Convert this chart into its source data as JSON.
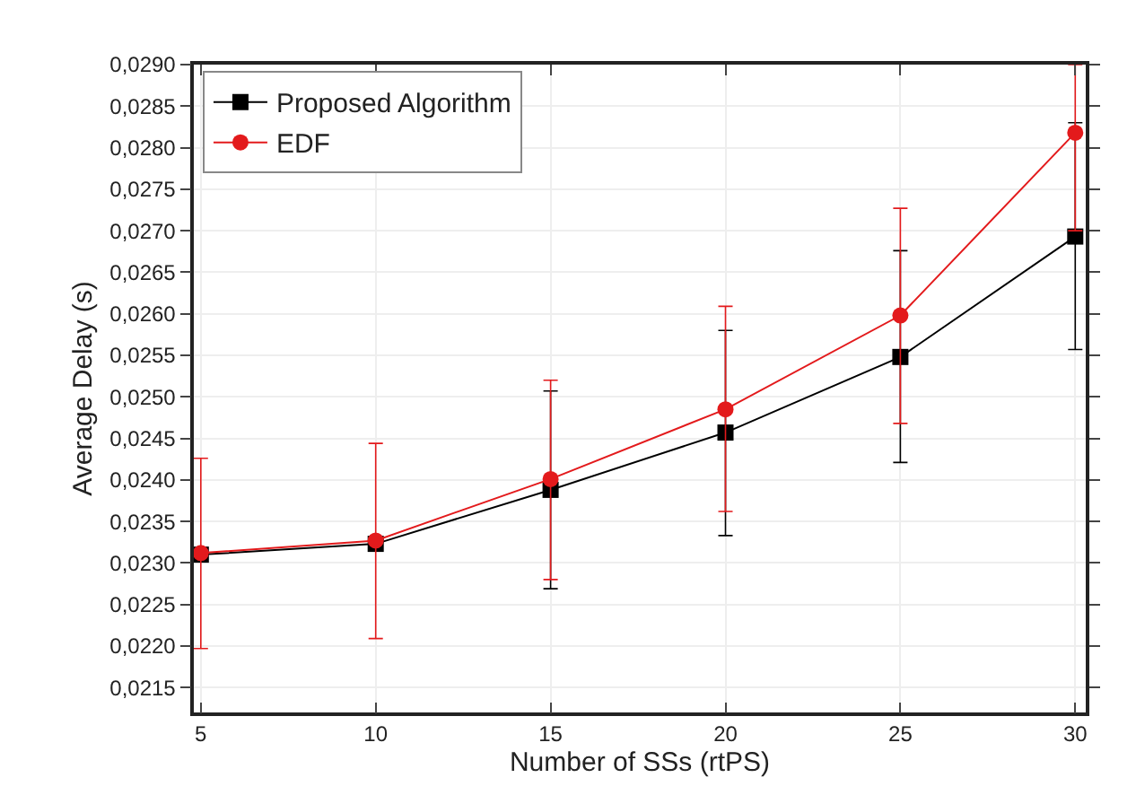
{
  "chart_data": {
    "type": "line",
    "xlabel": "Number of SSs (rtPS)",
    "ylabel": "Average Delay (s)",
    "x": [
      5,
      10,
      15,
      20,
      25,
      30
    ],
    "series": [
      {
        "name": "Proposed Algorithm",
        "color": "#000000",
        "marker": "square",
        "values": [
          0.0231,
          0.02323,
          0.02388,
          0.02457,
          0.02548,
          0.02693
        ],
        "errors": [
          null,
          null,
          [
            0.02269,
            0.02507
          ],
          [
            0.02333,
            0.0258
          ],
          [
            0.02421,
            0.02676
          ],
          [
            0.02557,
            0.0283
          ]
        ]
      },
      {
        "name": "EDF",
        "color": "#e31a1c",
        "marker": "circle",
        "values": [
          0.02312,
          0.02327,
          0.02401,
          0.02485,
          0.02598,
          0.02818
        ],
        "errors": [
          [
            0.02197,
            0.02426
          ],
          [
            0.02209,
            0.02444
          ],
          [
            0.0228,
            0.0252
          ],
          [
            0.02362,
            0.02609
          ],
          [
            0.02468,
            0.02727
          ],
          [
            0.027,
            0.029
          ]
        ]
      }
    ],
    "xlim": [
      4.8,
      30.3
    ],
    "xticks": [
      5,
      10,
      15,
      20,
      25,
      30
    ],
    "ylim": [
      0.0212,
      0.029
    ],
    "yticks": [
      {
        "value": 0.0215,
        "label": "0,0215"
      },
      {
        "value": 0.022,
        "label": "0,0220"
      },
      {
        "value": 0.0225,
        "label": "0,0225"
      },
      {
        "value": 0.023,
        "label": "0,0230"
      },
      {
        "value": 0.0235,
        "label": "0,0235"
      },
      {
        "value": 0.024,
        "label": "0,0240"
      },
      {
        "value": 0.0245,
        "label": "0,0245"
      },
      {
        "value": 0.025,
        "label": "0,0250"
      },
      {
        "value": 0.0255,
        "label": "0,0255"
      },
      {
        "value": 0.026,
        "label": "0,0260"
      },
      {
        "value": 0.0265,
        "label": "0,0265"
      },
      {
        "value": 0.027,
        "label": "0,0270"
      },
      {
        "value": 0.0275,
        "label": "0,0275"
      },
      {
        "value": 0.028,
        "label": "0,0280"
      },
      {
        "value": 0.0285,
        "label": "0,0285"
      },
      {
        "value": 0.029,
        "label": "0,0290"
      }
    ],
    "grid": true,
    "legend": "top left",
    "line_style": "solid"
  }
}
